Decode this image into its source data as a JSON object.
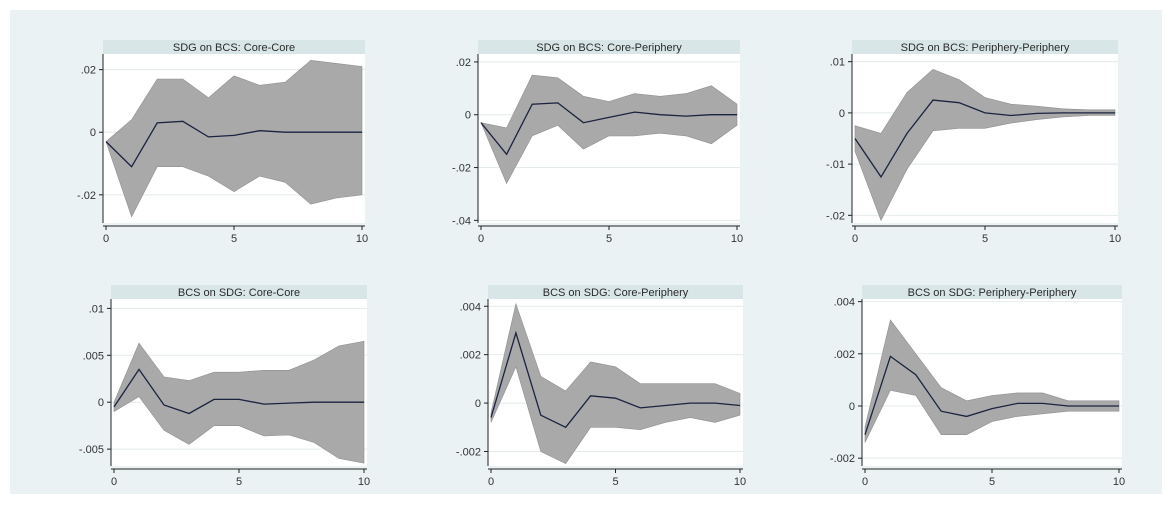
{
  "figure": {
    "background": "#eaf2f3",
    "plot_background": "#ffffff",
    "title_strip": "#d9e6e8",
    "band_color": "#a9a9a9",
    "line_color": "#1a2340"
  },
  "chart_data": [
    {
      "type": "area",
      "title": "SDG on BCS: Core-Core",
      "x": [
        0,
        1,
        2,
        3,
        4,
        5,
        6,
        7,
        8,
        9,
        10
      ],
      "series": [
        {
          "values": [
            -0.003,
            -0.011,
            0.003,
            0.0035,
            -0.0015,
            -0.001,
            0.0005,
            0.0,
            0.0,
            0.0,
            0.0
          ]
        },
        {
          "values": [
            -0.003,
            -0.027,
            -0.011,
            -0.011,
            -0.014,
            -0.019,
            -0.014,
            -0.016,
            -0.023,
            -0.021,
            -0.02
          ]
        },
        {
          "values": [
            -0.003,
            0.004,
            0.017,
            0.017,
            0.011,
            0.018,
            0.015,
            0.016,
            0.023,
            0.022,
            0.021
          ]
        }
      ],
      "xlim": [
        0,
        10
      ],
      "ylim": [
        -0.029,
        0.025
      ],
      "xticks": [
        0,
        5,
        10
      ],
      "xtick_labels": [
        "0",
        "5",
        "10"
      ],
      "yticks": [
        -0.02,
        0,
        0.02
      ],
      "ytick_labels": [
        "-.02",
        "0",
        ".02"
      ],
      "grid": "horizontal"
    },
    {
      "type": "area",
      "title": "SDG on BCS: Core-Periphery",
      "x": [
        0,
        1,
        2,
        3,
        4,
        5,
        6,
        7,
        8,
        9,
        10
      ],
      "series": [
        {
          "values": [
            -0.003,
            -0.015,
            0.004,
            0.0045,
            -0.003,
            -0.001,
            0.001,
            0.0,
            -0.0005,
            0.0,
            0.0
          ]
        },
        {
          "values": [
            -0.003,
            -0.026,
            -0.008,
            -0.004,
            -0.013,
            -0.008,
            -0.008,
            -0.007,
            -0.008,
            -0.011,
            -0.004
          ]
        },
        {
          "values": [
            -0.003,
            -0.005,
            0.015,
            0.014,
            0.007,
            0.005,
            0.008,
            0.007,
            0.008,
            0.011,
            0.004
          ]
        }
      ],
      "xlim": [
        0,
        10
      ],
      "ylim": [
        -0.041,
        0.023
      ],
      "xticks": [
        0,
        5,
        10
      ],
      "xtick_labels": [
        "0",
        "5",
        "10"
      ],
      "yticks": [
        -0.04,
        -0.02,
        0,
        0.02
      ],
      "ytick_labels": [
        "-.04",
        "-.02",
        "0",
        ".02"
      ],
      "grid": "horizontal"
    },
    {
      "type": "area",
      "title": "SDG on BCS: Periphery-Periphery",
      "x": [
        0,
        1,
        2,
        3,
        4,
        5,
        6,
        7,
        8,
        9,
        10
      ],
      "series": [
        {
          "values": [
            -0.005,
            -0.0125,
            -0.004,
            0.0025,
            0.002,
            0.0,
            -0.0005,
            -0.0001,
            0.0,
            0.0,
            0.0
          ]
        },
        {
          "values": [
            -0.0075,
            -0.021,
            -0.011,
            -0.0035,
            -0.003,
            -0.003,
            -0.002,
            -0.0013,
            -0.0008,
            -0.0005,
            -0.0005
          ]
        },
        {
          "values": [
            -0.0025,
            -0.004,
            0.004,
            0.0085,
            0.0065,
            0.003,
            0.0017,
            0.0013,
            0.0008,
            0.0006,
            0.0006
          ]
        }
      ],
      "xlim": [
        0,
        10
      ],
      "ylim": [
        -0.0215,
        0.0115
      ],
      "xticks": [
        0,
        5,
        10
      ],
      "xtick_labels": [
        "0",
        "5",
        "10"
      ],
      "yticks": [
        -0.02,
        -0.01,
        0,
        0.01
      ],
      "ytick_labels": [
        "-.02",
        "-.01",
        "0",
        ".01"
      ],
      "grid": "horizontal"
    },
    {
      "type": "area",
      "title": "BCS on SDG: Core-Core",
      "x": [
        0,
        1,
        2,
        3,
        4,
        5,
        6,
        7,
        8,
        9,
        10
      ],
      "series": [
        {
          "values": [
            -0.0005,
            0.0035,
            -0.0003,
            -0.0012,
            0.0003,
            0.0003,
            -0.0002,
            -0.0001,
            0.0,
            0.0,
            0.0
          ]
        },
        {
          "values": [
            -0.001,
            0.0006,
            -0.003,
            -0.0045,
            -0.0025,
            -0.0025,
            -0.0036,
            -0.0035,
            -0.0043,
            -0.006,
            -0.0065
          ]
        },
        {
          "values": [
            0.0,
            0.0063,
            0.0027,
            0.0023,
            0.0032,
            0.0032,
            0.0034,
            0.0034,
            0.0045,
            0.006,
            0.0065
          ]
        }
      ],
      "xlim": [
        0,
        10
      ],
      "ylim": [
        -0.0068,
        0.011
      ],
      "xticks": [
        0,
        5,
        10
      ],
      "xtick_labels": [
        "0",
        "5",
        "10"
      ],
      "yticks": [
        -0.005,
        0,
        0.005,
        0.01
      ],
      "ytick_labels": [
        "-.005",
        "0",
        ".005",
        ".01"
      ],
      "grid": "horizontal"
    },
    {
      "type": "area",
      "title": "BCS on SDG: Core-Periphery",
      "x": [
        0,
        1,
        2,
        3,
        4,
        5,
        6,
        7,
        8,
        9,
        10
      ],
      "series": [
        {
          "values": [
            -0.0006,
            0.0029,
            -0.0005,
            -0.001,
            0.0003,
            0.0002,
            -0.0002,
            -0.0001,
            0.0,
            0.0,
            -0.0001
          ]
        },
        {
          "values": [
            -0.0008,
            0.0015,
            -0.002,
            -0.0025,
            -0.001,
            -0.001,
            -0.0011,
            -0.0008,
            -0.0006,
            -0.0008,
            -0.0005
          ]
        },
        {
          "values": [
            -0.0004,
            0.0041,
            0.0011,
            0.0005,
            0.0017,
            0.0015,
            0.0008,
            0.0008,
            0.0008,
            0.0008,
            0.0004
          ]
        }
      ],
      "xlim": [
        0,
        10
      ],
      "ylim": [
        -0.0026,
        0.0043
      ],
      "xticks": [
        0,
        5,
        10
      ],
      "xtick_labels": [
        "0",
        "5",
        "10"
      ],
      "yticks": [
        -0.002,
        0,
        0.002,
        0.004
      ],
      "ytick_labels": [
        "-.002",
        "0",
        ".002",
        ".004"
      ],
      "grid": "horizontal"
    },
    {
      "type": "area",
      "title": "BCS on SDG: Periphery-Periphery",
      "x": [
        0,
        1,
        2,
        3,
        4,
        5,
        6,
        7,
        8,
        9,
        10
      ],
      "series": [
        {
          "values": [
            -0.0011,
            0.0019,
            0.0012,
            -0.0002,
            -0.0004,
            -0.0001,
            0.0001,
            0.0001,
            0.0,
            0.0,
            0.0
          ]
        },
        {
          "values": [
            -0.0014,
            0.0006,
            0.0004,
            -0.0011,
            -0.0011,
            -0.0006,
            -0.0004,
            -0.0003,
            -0.0002,
            -0.0002,
            -0.0002
          ]
        },
        {
          "values": [
            -0.0008,
            0.0033,
            0.002,
            0.0007,
            0.0002,
            0.0004,
            0.0005,
            0.0005,
            0.0002,
            0.0002,
            0.0002
          ]
        }
      ],
      "xlim": [
        0,
        10
      ],
      "ylim": [
        -0.0023,
        0.0041
      ],
      "xticks": [
        0,
        5,
        10
      ],
      "xtick_labels": [
        "0",
        "5",
        "10"
      ],
      "yticks": [
        -0.002,
        0,
        0.002,
        0.004
      ],
      "ytick_labels": [
        "-.002",
        "0",
        ".002",
        ".004"
      ],
      "grid": "horizontal"
    }
  ]
}
